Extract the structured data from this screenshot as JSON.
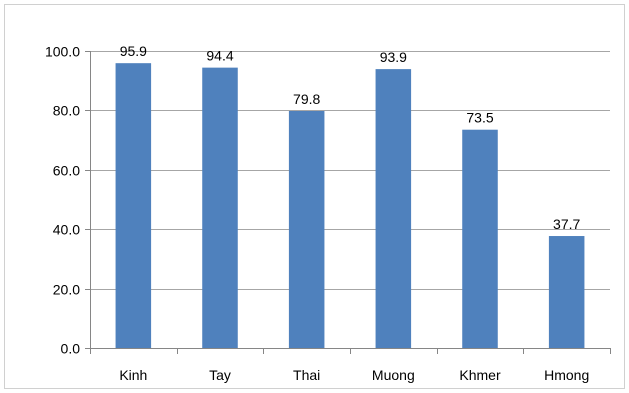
{
  "chart_data": {
    "type": "bar",
    "title": "",
    "xlabel": "",
    "ylabel": "",
    "categories": [
      "Kinh",
      "Tay",
      "Thai",
      "Muong",
      "Khmer",
      "Hmong"
    ],
    "values": [
      95.9,
      94.4,
      79.8,
      93.9,
      73.5,
      37.7
    ],
    "data_labels": [
      "95.9",
      "94.4",
      "79.8",
      "93.9",
      "73.5",
      "37.7"
    ],
    "ylim": [
      0,
      100
    ],
    "yticks": [
      0,
      20,
      40,
      60,
      80,
      100
    ],
    "ytick_labels": [
      "0.0",
      "20.0",
      "40.0",
      "60.0",
      "80.0",
      "100.0"
    ],
    "grid": true,
    "legend": "none",
    "colors": {
      "bar": "#4f81bd",
      "grid": "#a6a6a6",
      "axis": "#868686",
      "border": "#d0d0d0",
      "text": "#000000"
    }
  }
}
